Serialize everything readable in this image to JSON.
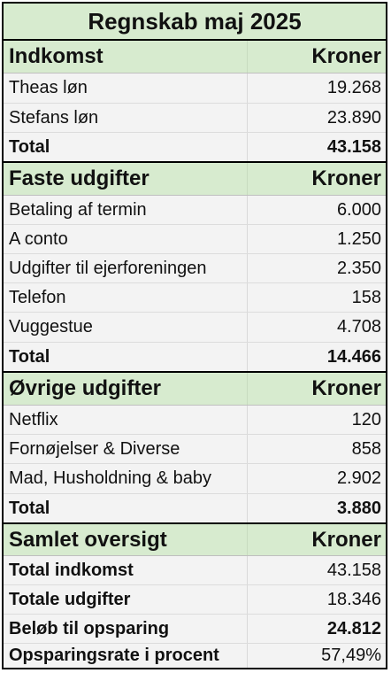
{
  "title": "Regnskab maj 2025",
  "sections": [
    {
      "header": "Indkomst",
      "col": "Kroner",
      "items": [
        {
          "label": "Theas løn",
          "value": "19.268"
        },
        {
          "label": "Stefans løn",
          "value": "23.890"
        }
      ],
      "total_label": "Total",
      "total_value": "43.158"
    },
    {
      "header": "Faste udgifter",
      "col": "Kroner",
      "items": [
        {
          "label": "Betaling af termin",
          "value": "6.000"
        },
        {
          "label": "A conto",
          "value": "1.250"
        },
        {
          "label": "Udgifter til ejerforeningen",
          "value": "2.350"
        },
        {
          "label": "Telefon",
          "value": "158"
        },
        {
          "label": "Vuggestue",
          "value": "4.708"
        }
      ],
      "total_label": "Total",
      "total_value": "14.466"
    },
    {
      "header": "Øvrige udgifter",
      "col": "Kroner",
      "items": [
        {
          "label": "Netflix",
          "value": "120"
        },
        {
          "label": "Fornøjelser & Diverse",
          "value": "858"
        },
        {
          "label": "Mad, Husholdning & baby",
          "value": "2.902"
        }
      ],
      "total_label": "Total",
      "total_value": "3.880"
    }
  ],
  "summary": {
    "header": "Samlet oversigt",
    "col": "Kroner",
    "rows": [
      {
        "label": "Total indkomst",
        "value": "43.158"
      },
      {
        "label": "Totale udgifter",
        "value": "18.346"
      },
      {
        "label": "Beløb til opsparing",
        "value": "24.812"
      },
      {
        "label": "Opsparingsrate i procent",
        "value": "57,49%"
      }
    ]
  }
}
